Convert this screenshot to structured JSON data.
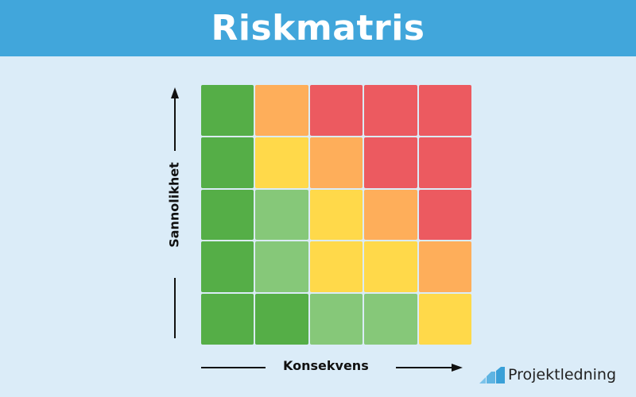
{
  "header": {
    "title": "Riskmatris",
    "bg_color": "#41a6db"
  },
  "axes": {
    "y_label": "Sannolikhet",
    "x_label": "Konsekvens"
  },
  "colors": {
    "dark_green": "#55ae47",
    "light_green": "#86c879",
    "yellow": "#ffd94a",
    "orange": "#feae5a",
    "red": "#ec5a60",
    "background": "#dbecf8"
  },
  "matrix": {
    "rows_top_to_bottom": [
      [
        "dark_green",
        "orange",
        "red",
        "red",
        "red"
      ],
      [
        "dark_green",
        "yellow",
        "orange",
        "red",
        "red"
      ],
      [
        "dark_green",
        "light_green",
        "yellow",
        "orange",
        "red"
      ],
      [
        "dark_green",
        "light_green",
        "yellow",
        "yellow",
        "orange"
      ],
      [
        "dark_green",
        "dark_green",
        "light_green",
        "light_green",
        "yellow"
      ]
    ]
  },
  "logo": {
    "text": "Projektledning",
    "icon": "bar-chart-steps-icon"
  }
}
